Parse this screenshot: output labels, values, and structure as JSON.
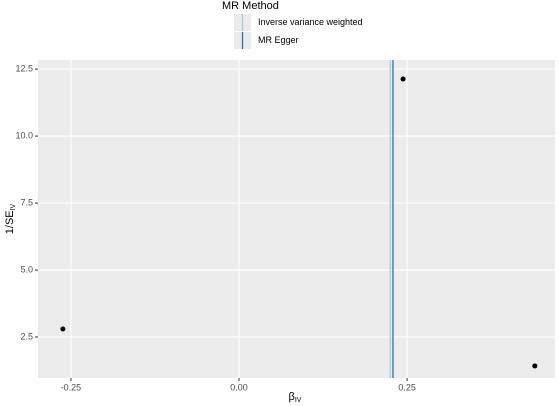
{
  "chart_data": {
    "type": "scatter",
    "legend_title": "MR Method",
    "legend_position": "top",
    "x_label": "β",
    "x_label_subscript": "IV",
    "y_label": "1/SE",
    "y_label_subscript": "IV",
    "points": {
      "color": "#000000",
      "x": [
        -0.262,
        0.244,
        0.44
      ],
      "y": [
        2.8,
        12.13,
        1.42
      ]
    },
    "series": [
      {
        "name": "Inverse variance weighted",
        "color": "#a6cee3",
        "xintercept": 0.225
      },
      {
        "name": "MR Egger",
        "color": "#1f78b4",
        "xintercept": 0.229
      }
    ],
    "xlim": [
      -0.299,
      0.47
    ],
    "xticks": [
      -0.25,
      {
        "value": 0,
        "label": "0.00"
      },
      0.25
    ],
    "ylim": [
      0.97,
      12.84
    ],
    "yticks": [
      2.5,
      {
        "value": 5,
        "label": "5.0"
      },
      7.5,
      {
        "value": 10,
        "label": "10.0"
      },
      12.5
    ],
    "grid": true
  }
}
